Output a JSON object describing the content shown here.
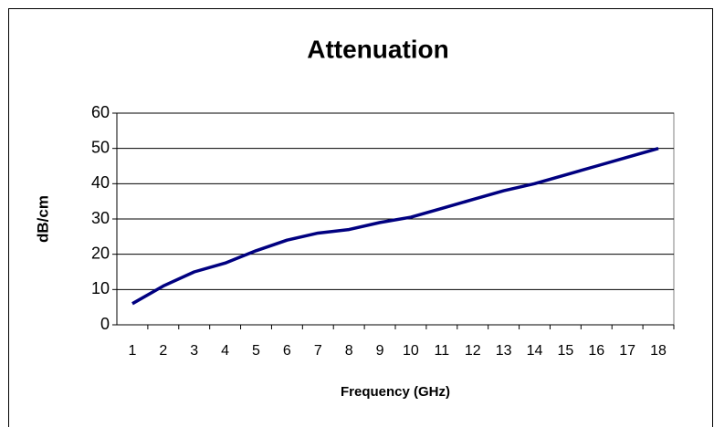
{
  "chart_data": {
    "type": "line",
    "title": "Attenuation",
    "x_label": "Frequency (GHz)",
    "y_label": "dB/cm",
    "categories": [
      "1",
      "2",
      "3",
      "4",
      "5",
      "6",
      "7",
      "8",
      "9",
      "10",
      "11",
      "12",
      "13",
      "14",
      "15",
      "16",
      "17",
      "18"
    ],
    "series": [
      {
        "name": "Attenuation",
        "color": "#000080",
        "values": [
          6,
          11,
          15,
          17.5,
          21,
          24,
          26,
          27,
          29,
          30.5,
          33,
          35.5,
          38,
          40,
          42.5,
          45,
          47.5,
          50
        ]
      }
    ],
    "ylim": [
      0,
      60
    ],
    "yticks": [
      0,
      10,
      20,
      30,
      40,
      50,
      60
    ],
    "grid": true
  }
}
